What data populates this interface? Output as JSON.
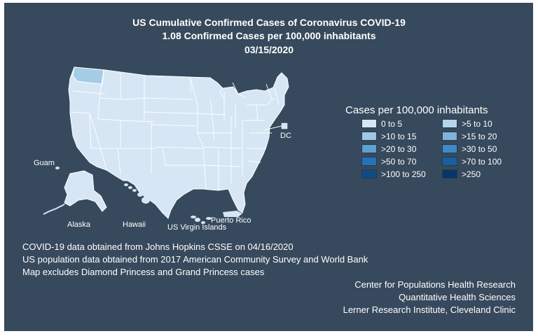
{
  "title": {
    "line1": "US Cumulative Confirmed Cases of Coronavirus COVID-19",
    "line2": "1.08 Confirmed Cases per 100,000 inhabitants",
    "line3": "03/15/2020"
  },
  "map_labels": {
    "guam": "Guam",
    "alaska": "Alaska",
    "hawaii": "Hawaii",
    "usvi": "US Virgin Islands",
    "puerto_rico": "Puerto Rico",
    "dc": "DC"
  },
  "colors": {
    "background": "#37495c",
    "base_fill": "#d6e6f4",
    "highlight_fill": "#a3cce6",
    "border": "#ffffff"
  },
  "highlighted_state": "Washington",
  "legend": {
    "title": "Cases per 100,000 inhabitants",
    "items": [
      {
        "label": "0 to 5",
        "color": "#d6e6f4"
      },
      {
        "label": ">5 to 10",
        "color": "#b6d5ec"
      },
      {
        "label": ">10 to 15",
        "color": "#9ec8e4"
      },
      {
        "label": ">15 to 20",
        "color": "#7fb3dc"
      },
      {
        "label": ">20 to 30",
        "color": "#5fa0d2"
      },
      {
        "label": ">30 to 50",
        "color": "#3f89c6"
      },
      {
        "label": ">50 to 70",
        "color": "#2573b6"
      },
      {
        "label": ">70 to 100",
        "color": "#175f9e"
      },
      {
        "label": ">100 to 250",
        "color": "#0d4c84"
      },
      {
        "label": ">250",
        "color": "#08366a"
      }
    ]
  },
  "notes": [
    "COVID-19 data obtained from Johns Hopkins CSSE on 04/16/2020",
    "US population data obtained from 2017 American Community Survey and World Bank",
    "Map excludes Diamond Princess and Grand Princess cases"
  ],
  "credits": [
    "Center for Populations Health Research",
    "Quantitative Health Sciences",
    "Lerner Research Institute, Cleveland Clinic"
  ]
}
